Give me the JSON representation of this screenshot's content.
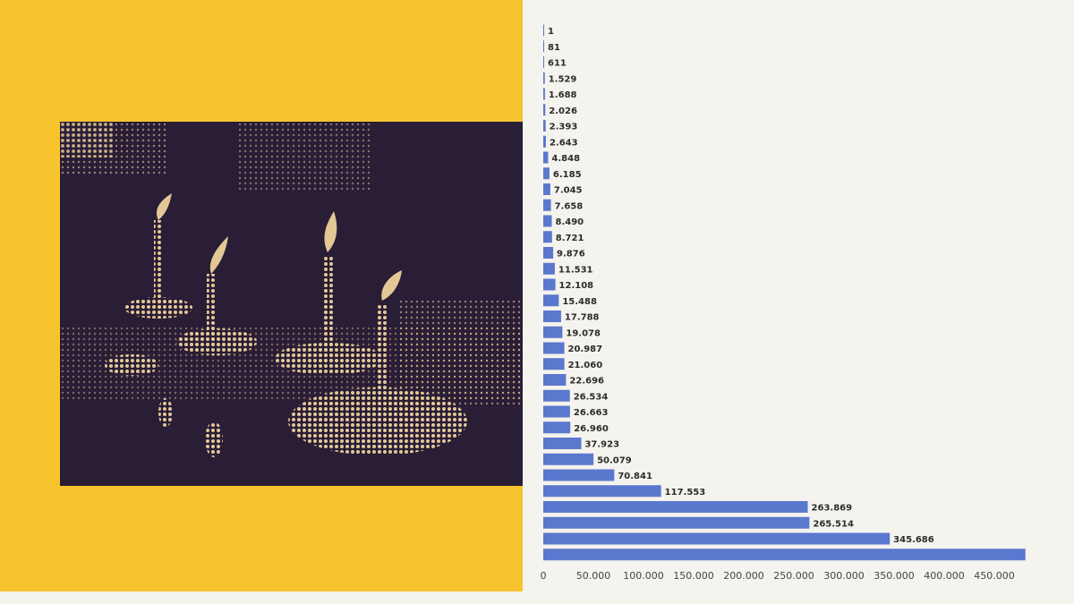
{
  "colors": {
    "left_background": "#f8c42e",
    "photo_dark": "#2a1d36",
    "photo_light": "#e3c896",
    "chart_background": "#f5f3ee",
    "bar": "#5b78cf"
  },
  "chart_data": {
    "type": "bar",
    "orientation": "horizontal",
    "values": [
      1,
      81,
      611,
      1529,
      1688,
      2026,
      2393,
      2643,
      4848,
      6185,
      7045,
      7658,
      8490,
      8721,
      9876,
      11531,
      12108,
      15488,
      17788,
      19078,
      20987,
      21060,
      22696,
      26534,
      26663,
      26960,
      37923,
      50079,
      70841,
      117553,
      263869,
      265514,
      345686,
      481000
    ],
    "labels": [
      "1",
      "81",
      "611",
      "1.529",
      "1.688",
      "2.026",
      "2.393",
      "2.643",
      "4.848",
      "6.185",
      "7.045",
      "7.658",
      "8.490",
      "8.721",
      "9.876",
      "11.531",
      "12.108",
      "15.488",
      "17.788",
      "19.078",
      "20.987",
      "21.060",
      "22.696",
      "26.534",
      "26.663",
      "26.960",
      "37.923",
      "50.079",
      "70.841",
      "117.553",
      "263.869",
      "265.514",
      "345.686",
      ""
    ],
    "xticks": [
      0,
      50000,
      100000,
      150000,
      200000,
      250000,
      300000,
      350000,
      400000,
      450000
    ],
    "xtick_labels": [
      "0",
      "50.000",
      "100.000",
      "150.000",
      "200.000",
      "250.000",
      "300.000",
      "350.000",
      "400.000",
      "450.000"
    ],
    "xlim": [
      0,
      475000
    ],
    "grid": false,
    "title": "",
    "xlabel": "",
    "ylabel": ""
  }
}
